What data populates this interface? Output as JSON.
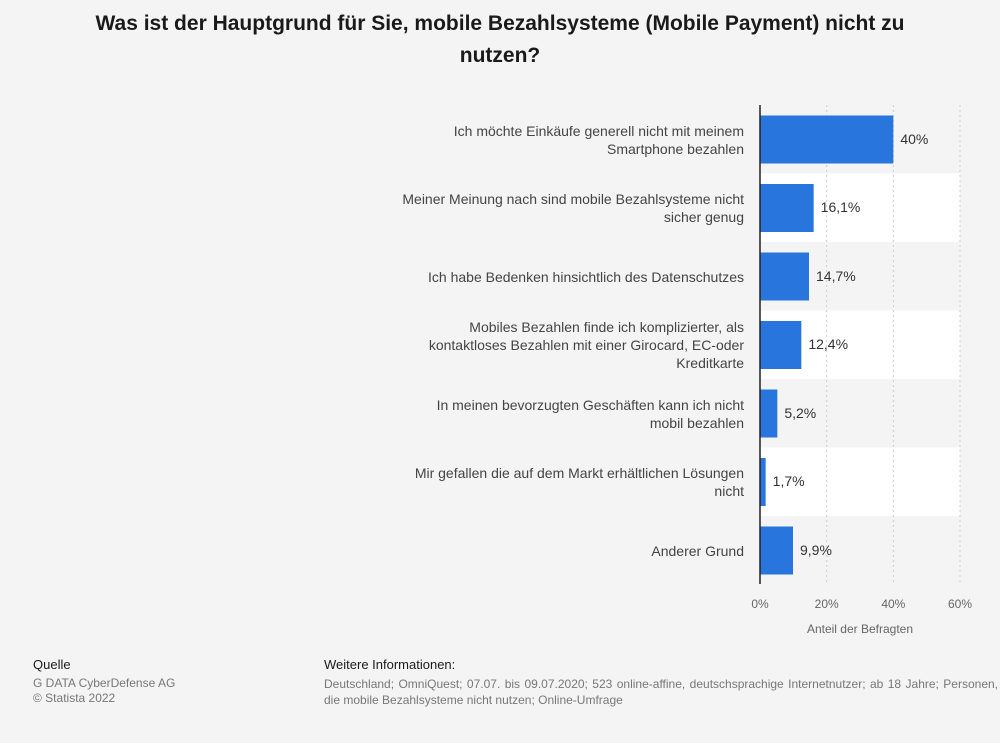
{
  "chart_data": {
    "type": "bar",
    "orientation": "horizontal",
    "title": "Was ist der Hauptgrund für Sie, mobile Bezahlsysteme (Mobile Payment) nicht zu nutzen?",
    "categories": [
      "Ich möchte Einkäufe generell nicht mit meinem Smartphone bezahlen",
      "Meiner Meinung nach sind mobile Bezahlsysteme nicht sicher genug",
      "Ich habe Bedenken hinsichtlich des Datenschutzes",
      "Mobiles Bezahlen finde ich komplizierter, als kontaktloses Bezahlen mit einer Girocard, EC-oder Kreditkarte",
      "In meinen bevorzugten Geschäften kann ich nicht mobil bezahlen",
      "Mir gefallen die auf dem Markt erhältlichen Lösungen nicht",
      "Anderer Grund"
    ],
    "values": [
      40,
      16.1,
      14.7,
      12.4,
      5.2,
      1.7,
      9.9
    ],
    "value_labels": [
      "40%",
      "16,1%",
      "14,7%",
      "12,4%",
      "5,2%",
      "1,7%",
      "9,9%"
    ],
    "xlabel": "Anteil der Befragten",
    "ylabel": "",
    "xlim": [
      0,
      60
    ],
    "x_ticks": [
      0,
      20,
      40,
      60
    ],
    "x_tick_labels": [
      "0%",
      "20%",
      "40%",
      "60%"
    ],
    "grid": true,
    "colors": {
      "bar": "#2876dd",
      "band": "#ffffff",
      "grid": "#cccccc",
      "axis": "#222222",
      "background": "#f4f4f4"
    }
  },
  "footer": {
    "source_heading": "Quelle",
    "source_lines": [
      "G DATA CyberDefense AG",
      "© Statista 2022"
    ],
    "info_heading": "Weitere Informationen:",
    "info_text": "Deutschland; OmniQuest; 07.07. bis 09.07.2020; 523 online-affine, deutschsprachige Internetnutzer; ab 18 Jahre; Personen, die mobile Bezahlsysteme nicht nutzen; Online-Umfrage"
  }
}
